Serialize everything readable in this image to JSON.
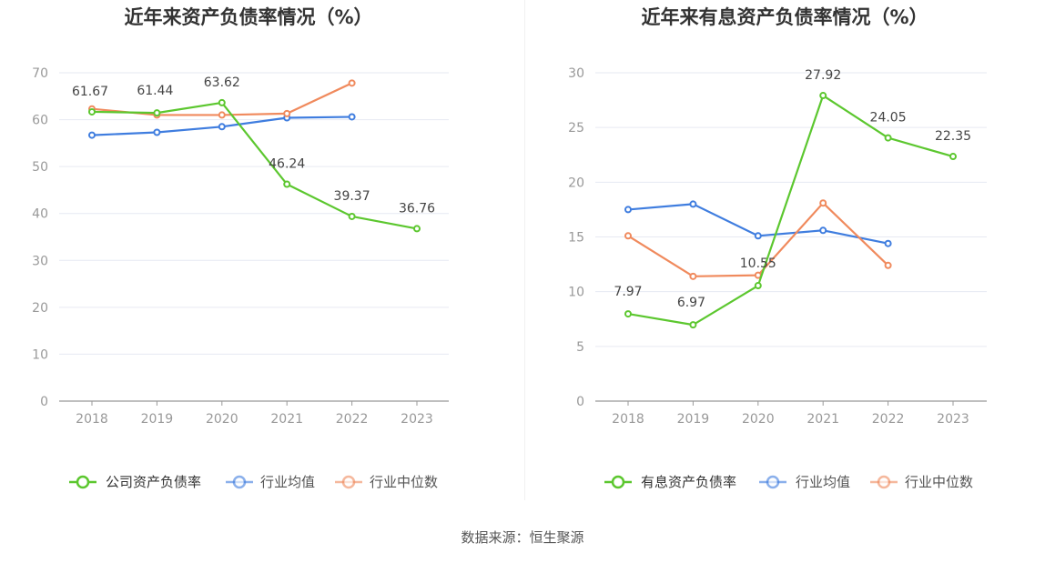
{
  "source": "数据来源：恒生聚源",
  "chart_data": [
    {
      "type": "line",
      "title": "近年来资产负债率情况（%）",
      "categories": [
        "2018",
        "2019",
        "2020",
        "2021",
        "2022",
        "2023"
      ],
      "ylim": [
        0,
        70
      ],
      "yticks": [
        "0",
        "10",
        "20",
        "30",
        "40",
        "50",
        "60",
        "70"
      ],
      "grid": true,
      "legend_position": "bottom",
      "series": [
        {
          "name": "公司资产负债率",
          "color": "#5cc72f",
          "values": [
            61.67,
            61.44,
            63.62,
            46.24,
            39.37,
            36.76
          ],
          "labels": [
            "61.67",
            "61.44",
            "63.62",
            "46.24",
            "39.37",
            "36.76"
          ]
        },
        {
          "name": "行业均值",
          "color": "#3f7ddf",
          "values": [
            56.7,
            57.3,
            58.5,
            60.4,
            60.6,
            null
          ]
        },
        {
          "name": "行业中位数",
          "color": "#f08a5d",
          "values": [
            62.3,
            61.0,
            61.0,
            61.3,
            67.8,
            null
          ]
        }
      ]
    },
    {
      "type": "line",
      "title": "近年来有息资产负债率情况（%）",
      "categories": [
        "2018",
        "2019",
        "2020",
        "2021",
        "2022",
        "2023"
      ],
      "ylim": [
        0,
        30
      ],
      "yticks": [
        "0",
        "5",
        "10",
        "15",
        "20",
        "25",
        "30"
      ],
      "grid": true,
      "legend_position": "bottom",
      "series": [
        {
          "name": "有息资产负债率",
          "color": "#5cc72f",
          "values": [
            7.97,
            6.97,
            10.55,
            27.92,
            24.05,
            22.35
          ],
          "labels": [
            "7.97",
            "6.97",
            "10.55",
            "27.92",
            "24.05",
            "22.35"
          ]
        },
        {
          "name": "行业均值",
          "color": "#3f7ddf",
          "values": [
            17.5,
            18.0,
            15.1,
            15.6,
            14.4,
            null
          ]
        },
        {
          "name": "行业中位数",
          "color": "#f08a5d",
          "values": [
            15.1,
            11.4,
            11.5,
            18.1,
            12.4,
            null
          ]
        }
      ]
    }
  ]
}
